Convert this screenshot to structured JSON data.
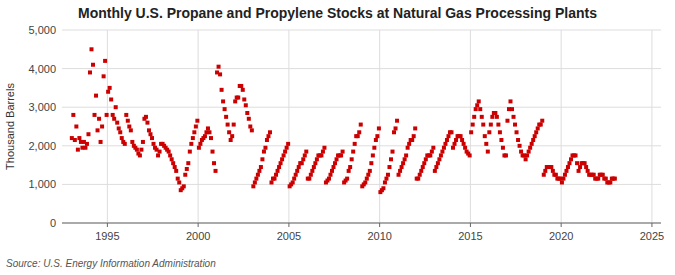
{
  "chart_data": {
    "type": "scatter",
    "title": "Monthly U.S. Propane and Propylene Stocks at Natural Gas Processing Plants",
    "ylabel": "Thousand Barrels",
    "source": "Source: U.S. Energy Information Administration",
    "color": "#cc0000",
    "marker": "square",
    "grid": true,
    "xlim": [
      1992.5,
      2025.5
    ],
    "ylim": [
      0,
      5000
    ],
    "xticks": [
      1995,
      2000,
      2005,
      2010,
      2015,
      2020,
      2025
    ],
    "yticks": [
      0,
      {
        "value": 1000,
        "label": "1,000"
      },
      {
        "value": 2000,
        "label": "2,000"
      },
      {
        "value": 3000,
        "label": "3,000"
      },
      {
        "value": 4000,
        "label": "4,000"
      },
      {
        "value": 5000,
        "label": "5,000"
      }
    ],
    "x": [
      1993.0416666667,
      1993.125,
      1993.2083333333,
      1993.2916666667,
      1993.375,
      1993.4583333333,
      1993.5416666667,
      1993.625,
      1993.7083333333,
      1993.7916666667,
      1993.875,
      1993.9583333333,
      1994.0416666667,
      1994.125,
      1994.2083333333,
      1994.2916666667,
      1994.375,
      1994.4583333333,
      1994.5416666667,
      1994.625,
      1994.7083333333,
      1994.7916666667,
      1994.875,
      1994.9583333333,
      1995.0416666667,
      1995.125,
      1995.2083333333,
      1995.2916666667,
      1995.375,
      1995.4583333333,
      1995.5416666667,
      1995.625,
      1995.7083333333,
      1995.7916666667,
      1995.875,
      1995.9583333333,
      1996.0416666667,
      1996.125,
      1996.2083333333,
      1996.2916666667,
      1996.375,
      1996.4583333333,
      1996.5416666667,
      1996.625,
      1996.7083333333,
      1996.7916666667,
      1996.875,
      1996.9583333333,
      1997.0416666667,
      1997.125,
      1997.2083333333,
      1997.2916666667,
      1997.375,
      1997.4583333333,
      1997.5416666667,
      1997.625,
      1997.7083333333,
      1997.7916666667,
      1997.875,
      1997.9583333333,
      1998.0416666667,
      1998.125,
      1998.2083333333,
      1998.2916666667,
      1998.375,
      1998.4583333333,
      1998.5416666667,
      1998.625,
      1998.7083333333,
      1998.7916666667,
      1998.875,
      1998.9583333333,
      1999.0416666667,
      1999.125,
      1999.2083333333,
      1999.2916666667,
      1999.375,
      1999.4583333333,
      1999.5416666667,
      1999.625,
      1999.7083333333,
      1999.7916666667,
      1999.875,
      1999.9583333333,
      2000.0416666667,
      2000.125,
      2000.2083333333,
      2000.2916666667,
      2000.375,
      2000.4583333333,
      2000.5416666667,
      2000.625,
      2000.7083333333,
      2000.7916666667,
      2000.875,
      2000.9583333333,
      2001.0416666667,
      2001.125,
      2001.2083333333,
      2001.2916666667,
      2001.375,
      2001.4583333333,
      2001.5416666667,
      2001.625,
      2001.7083333333,
      2001.7916666667,
      2001.875,
      2001.9583333333,
      2002.0416666667,
      2002.125,
      2002.2083333333,
      2002.2916666667,
      2002.375,
      2002.4583333333,
      2002.5416666667,
      2002.625,
      2002.7083333333,
      2002.7916666667,
      2002.875,
      2002.9583333333,
      2003.0416666667,
      2003.125,
      2003.2083333333,
      2003.2916666667,
      2003.375,
      2003.4583333333,
      2003.5416666667,
      2003.625,
      2003.7083333333,
      2003.7916666667,
      2003.875,
      2003.9583333333,
      2004.0416666667,
      2004.125,
      2004.2083333333,
      2004.2916666667,
      2004.375,
      2004.4583333333,
      2004.5416666667,
      2004.625,
      2004.7083333333,
      2004.7916666667,
      2004.875,
      2004.9583333333,
      2005.0416666667,
      2005.125,
      2005.2083333333,
      2005.2916666667,
      2005.375,
      2005.4583333333,
      2005.5416666667,
      2005.625,
      2005.7083333333,
      2005.7916666667,
      2005.875,
      2005.9583333333,
      2006.0416666667,
      2006.125,
      2006.2083333333,
      2006.2916666667,
      2006.375,
      2006.4583333333,
      2006.5416666667,
      2006.625,
      2006.7083333333,
      2006.7916666667,
      2006.875,
      2006.9583333333,
      2007.0416666667,
      2007.125,
      2007.2083333333,
      2007.2916666667,
      2007.375,
      2007.4583333333,
      2007.5416666667,
      2007.625,
      2007.7083333333,
      2007.7916666667,
      2007.875,
      2007.9583333333,
      2008.0416666667,
      2008.125,
      2008.2083333333,
      2008.2916666667,
      2008.375,
      2008.4583333333,
      2008.5416666667,
      2008.625,
      2008.7083333333,
      2008.7916666667,
      2008.875,
      2008.9583333333,
      2009.0416666667,
      2009.125,
      2009.2083333333,
      2009.2916666667,
      2009.375,
      2009.4583333333,
      2009.5416666667,
      2009.625,
      2009.7083333333,
      2009.7916666667,
      2009.875,
      2009.9583333333,
      2010.0416666667,
      2010.125,
      2010.2083333333,
      2010.2916666667,
      2010.375,
      2010.4583333333,
      2010.5416666667,
      2010.625,
      2010.7083333333,
      2010.7916666667,
      2010.875,
      2010.9583333333,
      2011.0416666667,
      2011.125,
      2011.2083333333,
      2011.2916666667,
      2011.375,
      2011.4583333333,
      2011.5416666667,
      2011.625,
      2011.7083333333,
      2011.7916666667,
      2011.875,
      2011.9583333333,
      2012.0416666667,
      2012.125,
      2012.2083333333,
      2012.2916666667,
      2012.375,
      2012.4583333333,
      2012.5416666667,
      2012.625,
      2012.7083333333,
      2012.7916666667,
      2012.875,
      2012.9583333333,
      2013.0416666667,
      2013.125,
      2013.2083333333,
      2013.2916666667,
      2013.375,
      2013.4583333333,
      2013.5416666667,
      2013.625,
      2013.7083333333,
      2013.7916666667,
      2013.875,
      2013.9583333333,
      2014.0416666667,
      2014.125,
      2014.2083333333,
      2014.2916666667,
      2014.375,
      2014.4583333333,
      2014.5416666667,
      2014.625,
      2014.7083333333,
      2014.7916666667,
      2014.875,
      2014.9583333333,
      2015.0416666667,
      2015.125,
      2015.2083333333,
      2015.2916666667,
      2015.375,
      2015.4583333333,
      2015.5416666667,
      2015.625,
      2015.7083333333,
      2015.7916666667,
      2015.875,
      2015.9583333333,
      2016.0416666667,
      2016.125,
      2016.2083333333,
      2016.2916666667,
      2016.375,
      2016.4583333333,
      2016.5416666667,
      2016.625,
      2016.7083333333,
      2016.7916666667,
      2016.875,
      2016.9583333333,
      2017.0416666667,
      2017.125,
      2017.2083333333,
      2017.2916666667,
      2017.375,
      2017.4583333333,
      2017.5416666667,
      2017.625,
      2017.7083333333,
      2017.7916666667,
      2017.875,
      2017.9583333333,
      2018.0416666667,
      2018.125,
      2018.2083333333,
      2018.2916666667,
      2018.375,
      2018.4583333333,
      2018.5416666667,
      2018.625,
      2018.7083333333,
      2018.7916666667,
      2018.875,
      2018.9583333333,
      2019.0416666667,
      2019.125,
      2019.2083333333,
      2019.2916666667,
      2019.375,
      2019.4583333333,
      2019.5416666667,
      2019.625,
      2019.7083333333,
      2019.7916666667,
      2019.875,
      2019.9583333333,
      2020.0416666667,
      2020.125,
      2020.2083333333,
      2020.2916666667,
      2020.375,
      2020.4583333333,
      2020.5416666667,
      2020.625,
      2020.7083333333,
      2020.7916666667,
      2020.875,
      2020.9583333333,
      2021.0416666667,
      2021.125,
      2021.2083333333,
      2021.2916666667,
      2021.375,
      2021.4583333333,
      2021.5416666667,
      2021.625,
      2021.7083333333,
      2021.7916666667,
      2021.875,
      2021.9583333333,
      2022.0416666667,
      2022.125,
      2022.2083333333,
      2022.2916666667,
      2022.375,
      2022.4583333333,
      2022.5416666667,
      2022.625,
      2022.7083333333,
      2022.7916666667,
      2022.875,
      2022.9583333333
    ],
    "values": [
      2200,
      2800,
      2150,
      2500,
      1900,
      2200,
      2100,
      1950,
      2100,
      1950,
      2050,
      2300,
      3900,
      4500,
      4100,
      2800,
      3300,
      2400,
      2700,
      2100,
      2500,
      3800,
      4200,
      2800,
      3400,
      3500,
      3200,
      2800,
      2700,
      3000,
      2600,
      2450,
      2350,
      2200,
      2100,
      2050,
      2800,
      2650,
      2500,
      2400,
      2100,
      2000,
      1950,
      1900,
      1800,
      1750,
      1900,
      2100,
      2700,
      2750,
      2600,
      2400,
      2300,
      2200,
      2050,
      1950,
      1900,
      1750,
      1850,
      2050,
      2050,
      2000,
      1950,
      1900,
      1850,
      1750,
      1650,
      1550,
      1450,
      1350,
      1150,
      1050,
      850,
      900,
      950,
      1250,
      1400,
      1550,
      1850,
      2050,
      2200,
      2350,
      2500,
      2650,
      1950,
      2050,
      2150,
      2200,
      2250,
      2350,
      2450,
      2350,
      2200,
      1850,
      1550,
      1350,
      3900,
      4050,
      3850,
      3450,
      3150,
      2950,
      2750,
      2550,
      2350,
      2150,
      2250,
      2550,
      3150,
      3250,
      3250,
      3550,
      3550,
      3450,
      3200,
      3050,
      2850,
      2700,
      2500,
      2400,
      950,
      1050,
      1150,
      1250,
      1350,
      1450,
      1650,
      1850,
      1950,
      2150,
      2250,
      2350,
      1050,
      1150,
      1150,
      1250,
      1350,
      1450,
      1550,
      1650,
      1750,
      1850,
      1950,
      2050,
      950,
      1000,
      1050,
      1150,
      1250,
      1350,
      1450,
      1550,
      1550,
      1650,
      1750,
      1850,
      1150,
      1150,
      1250,
      1350,
      1450,
      1550,
      1650,
      1750,
      1750,
      1750,
      1850,
      1950,
      1050,
      1100,
      1150,
      1250,
      1350,
      1450,
      1550,
      1650,
      1750,
      1750,
      1750,
      1850,
      1050,
      1100,
      1150,
      1350,
      1450,
      1650,
      1850,
      2050,
      2250,
      2250,
      2350,
      2550,
      950,
      1000,
      1050,
      1150,
      1250,
      1350,
      1550,
      1750,
      1950,
      2150,
      2250,
      2450,
      800,
      850,
      900,
      1050,
      1150,
      1250,
      1450,
      1650,
      1850,
      2350,
      2450,
      2650,
      1250,
      1350,
      1450,
      1550,
      1650,
      1750,
      1950,
      2050,
      2150,
      2150,
      2250,
      2450,
      1150,
      1150,
      1250,
      1350,
      1450,
      1550,
      1650,
      1750,
      1750,
      1750,
      1850,
      1950,
      1350,
      1450,
      1550,
      1650,
      1750,
      1850,
      1950,
      2050,
      2150,
      2250,
      2350,
      2350,
      1950,
      2050,
      2150,
      2250,
      2250,
      2250,
      2150,
      2050,
      1950,
      1850,
      1800,
      1750,
      2350,
      2550,
      2750,
      2950,
      3050,
      3150,
      2950,
      2750,
      2550,
      2250,
      2050,
      1850,
      2350,
      2550,
      2750,
      2850,
      2850,
      2750,
      2550,
      2350,
      2150,
      1950,
      1750,
      1750,
      2650,
      2950,
      3150,
      2950,
      2750,
      2550,
      2350,
      2150,
      2000,
      1850,
      1750,
      1750,
      1650,
      1750,
      1850,
      1950,
      2050,
      2150,
      2250,
      2350,
      2450,
      2550,
      2550,
      2650,
      1250,
      1350,
      1450,
      1450,
      1450,
      1450,
      1350,
      1250,
      1250,
      1150,
      1150,
      1150,
      1050,
      1150,
      1250,
      1350,
      1450,
      1550,
      1650,
      1750,
      1750,
      1750,
      1550,
      1350,
      1450,
      1550,
      1550,
      1550,
      1450,
      1350,
      1250,
      1250,
      1250,
      1250,
      1150,
      1150,
      1150,
      1250,
      1250,
      1250,
      1150,
      1150,
      1050,
      1050,
      1050,
      1150,
      1150,
      1150
    ]
  }
}
